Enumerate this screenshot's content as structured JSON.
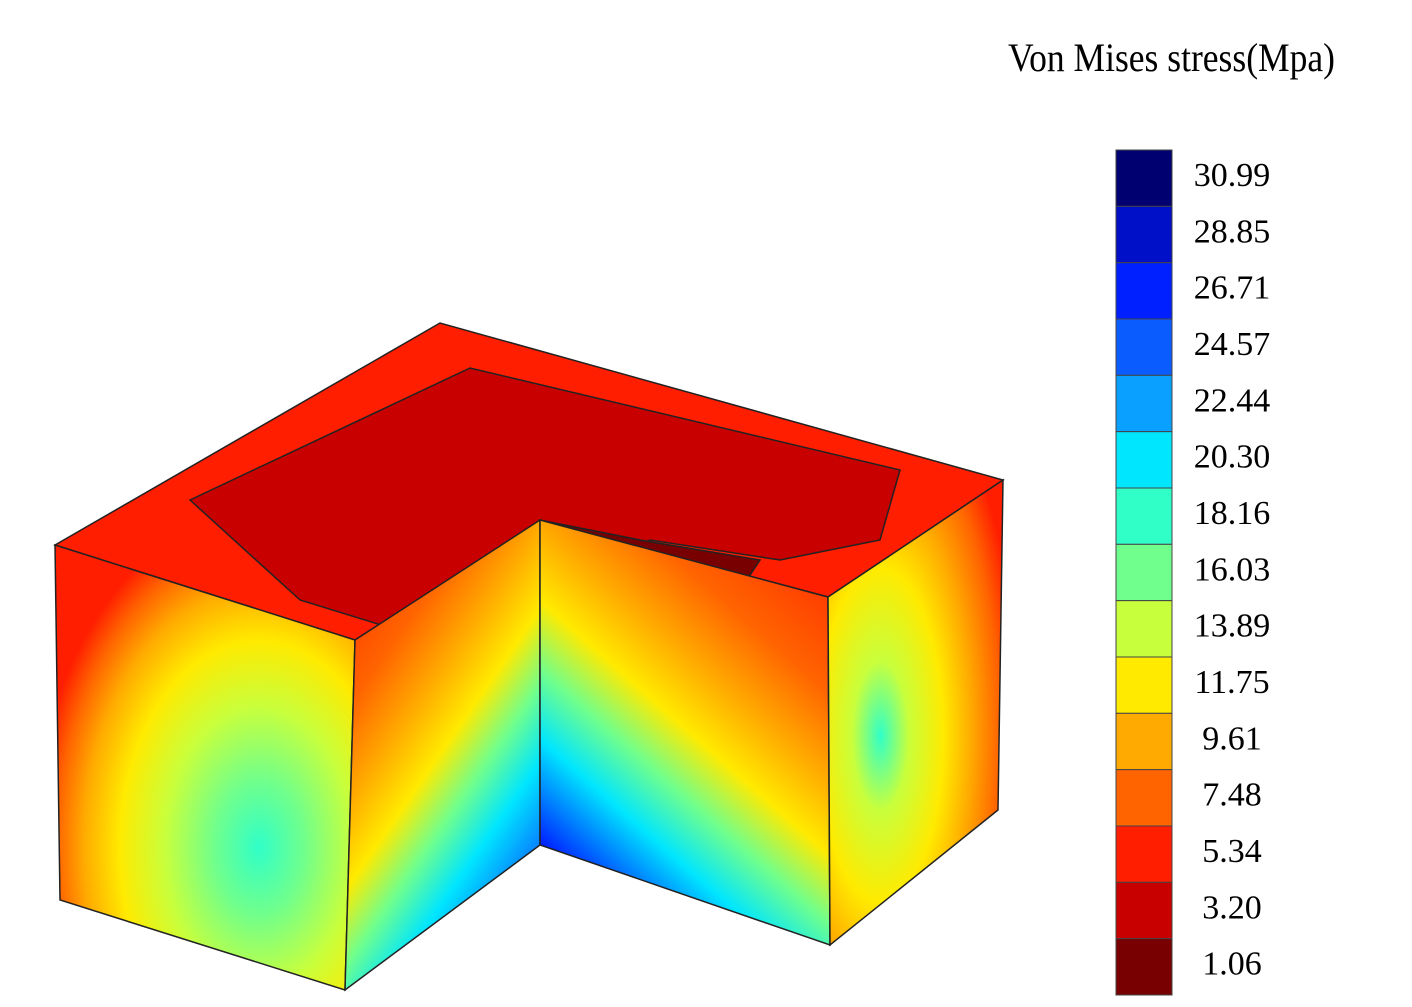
{
  "colorbar": {
    "title": "Von Mises stress(Mpa)",
    "levels": [
      {
        "label": "30.99",
        "color": "#000070"
      },
      {
        "label": "28.85",
        "color": "#0010c8"
      },
      {
        "label": "26.71",
        "color": "#0020ff"
      },
      {
        "label": "24.57",
        "color": "#0a5cff"
      },
      {
        "label": "22.44",
        "color": "#0aa0ff"
      },
      {
        "label": "20.30",
        "color": "#00e6ff"
      },
      {
        "label": "18.16",
        "color": "#30ffc8"
      },
      {
        "label": "16.03",
        "color": "#70ff8c"
      },
      {
        "label": "13.89",
        "color": "#c8ff3c"
      },
      {
        "label": "11.75",
        "color": "#ffea00"
      },
      {
        "label": "9.61",
        "color": "#ffaa00"
      },
      {
        "label": "7.48",
        "color": "#ff6400"
      },
      {
        "label": "5.34",
        "color": "#ff1e00"
      },
      {
        "label": "3.20",
        "color": "#c80000"
      },
      {
        "label": "1.06",
        "color": "#780000"
      }
    ]
  }
}
